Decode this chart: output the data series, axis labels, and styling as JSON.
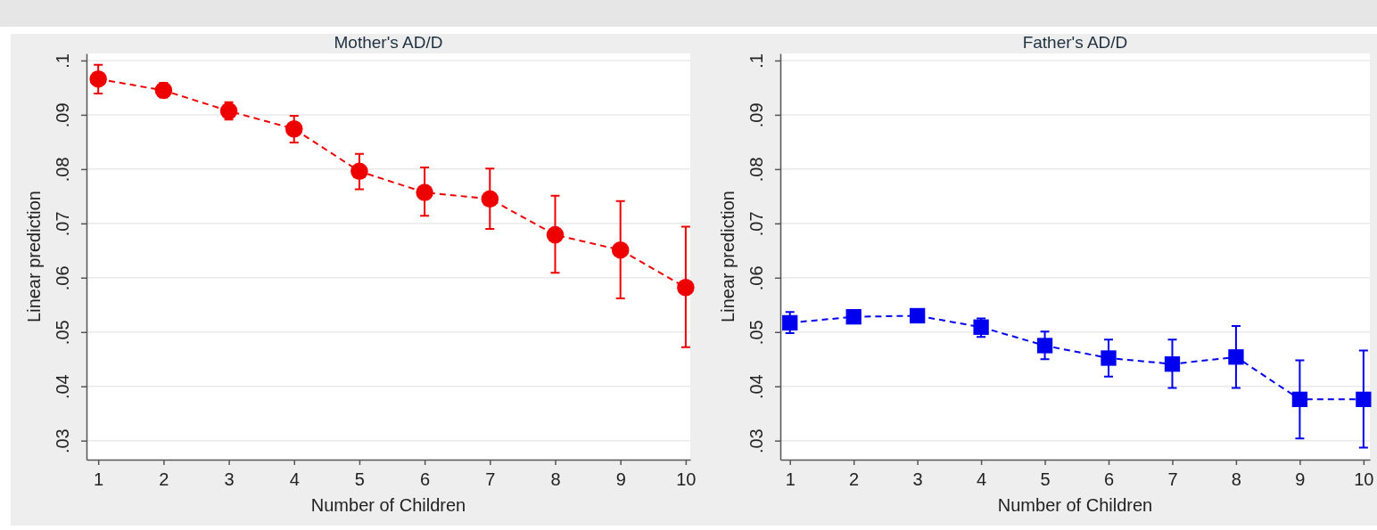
{
  "chart_data": [
    {
      "type": "line",
      "title": "Mother's AD/D",
      "xlabel": "Number of Children",
      "ylabel": "Linear prediction",
      "x": [
        1,
        2,
        3,
        4,
        5,
        6,
        7,
        8,
        9,
        10
      ],
      "series": [
        {
          "color": "#ee0000",
          "values": [
            0.0966,
            0.0945,
            0.0907,
            0.0874,
            0.0796,
            0.0757,
            0.0745,
            0.0679,
            0.0651,
            0.0582
          ],
          "errors": [
            [
              0.0939,
              0.0992
            ],
            [
              0.0932,
              0.0959
            ],
            [
              0.0891,
              0.0923
            ],
            [
              0.0849,
              0.0898
            ],
            [
              0.0763,
              0.0828
            ],
            [
              0.0714,
              0.0803
            ],
            [
              0.069,
              0.0801
            ],
            [
              0.0609,
              0.0751
            ],
            [
              0.0562,
              0.0741
            ],
            [
              0.0472,
              0.0694
            ]
          ]
        }
      ],
      "xlim": [
        0.82,
        10.07
      ],
      "xticks": [
        1,
        2,
        3,
        4,
        5,
        6,
        7,
        8,
        9,
        10
      ],
      "ylim": [
        0.0265,
        0.1013
      ],
      "yticks": [
        {
          "value": 0.03,
          "label": ".03"
        },
        {
          "value": 0.04,
          "label": ".04"
        },
        {
          "value": 0.05,
          "label": ".05"
        },
        {
          "value": 0.06,
          "label": ".06"
        },
        {
          "value": 0.07,
          "label": ".07"
        },
        {
          "value": 0.08,
          "label": ".08"
        },
        {
          "value": 0.09,
          "label": ".09"
        },
        {
          "value": 0.1,
          "label": ".1"
        }
      ],
      "grid": "y",
      "marker": "circle",
      "line_style": "dashed"
    },
    {
      "type": "line",
      "title": "Father's AD/D",
      "xlabel": "Number of Children",
      "ylabel": "Linear prediction",
      "x": [
        1,
        2,
        3,
        4,
        5,
        6,
        7,
        8,
        9,
        10
      ],
      "series": [
        {
          "color": "#0000ee",
          "values": [
            0.0517,
            0.0528,
            0.053,
            0.0509,
            0.0475,
            0.0452,
            0.0441,
            0.0454,
            0.0376,
            0.0376
          ],
          "errors": [
            [
              0.0498,
              0.0537
            ],
            null,
            null,
            [
              0.0491,
              0.0525
            ],
            [
              0.045,
              0.0501
            ],
            [
              0.0418,
              0.0486
            ],
            [
              0.0397,
              0.0486
            ],
            [
              0.0397,
              0.0511
            ],
            [
              0.0304,
              0.0448
            ],
            [
              0.0287,
              0.0466
            ]
          ]
        }
      ],
      "xlim": [
        0.85,
        10.1
      ],
      "xticks": [
        1,
        2,
        3,
        4,
        5,
        6,
        7,
        8,
        9,
        10
      ],
      "ylim": [
        0.0265,
        0.1013
      ],
      "yticks": [
        {
          "value": 0.03,
          "label": ".03"
        },
        {
          "value": 0.04,
          "label": ".04"
        },
        {
          "value": 0.05,
          "label": ".05"
        },
        {
          "value": 0.06,
          "label": ".06"
        },
        {
          "value": 0.07,
          "label": ".07"
        },
        {
          "value": 0.08,
          "label": ".08"
        },
        {
          "value": 0.09,
          "label": ".09"
        },
        {
          "value": 0.1,
          "label": ".1"
        }
      ],
      "grid": "y",
      "marker": "square",
      "line_style": "dashed"
    }
  ]
}
